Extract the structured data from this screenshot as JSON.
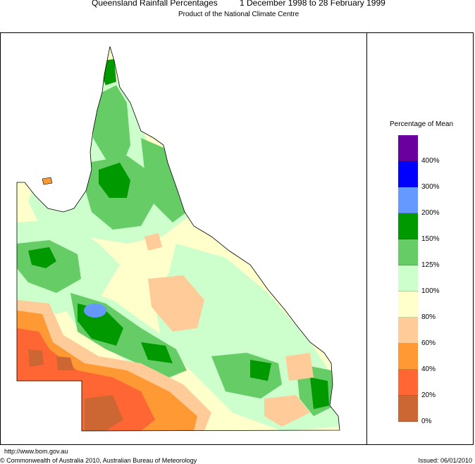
{
  "header": {
    "title_region": "Queensland Rainfall Percentages",
    "title_period": "1 December 1998 to 28 February 1999",
    "subtitle": "Product of the National Climate Centre"
  },
  "legend": {
    "title": "Percentage of Mean",
    "classes": [
      {
        "label": "400%",
        "color": "#6a009e"
      },
      {
        "label": "300%",
        "color": "#0000ff"
      },
      {
        "label": "200%",
        "color": "#6699ff"
      },
      {
        "label": "150%",
        "color": "#009900"
      },
      {
        "label": "125%",
        "color": "#66cc66"
      },
      {
        "label": "100%",
        "color": "#ccffcc"
      },
      {
        "label": "80%",
        "color": "#ffffcc"
      },
      {
        "label": "60%",
        "color": "#ffcc99"
      },
      {
        "label": "40%",
        "color": "#ff9933"
      },
      {
        "label": "20%",
        "color": "#ff6633"
      },
      {
        "label": "0%",
        "color": "#cc6633"
      }
    ]
  },
  "footer": {
    "url": "http://www.bom.gov.au",
    "copyright": "© Commonwealth of Australia 2010, Australian Bureau of Meteorology",
    "issued": "Issued: 06/01/2010"
  }
}
